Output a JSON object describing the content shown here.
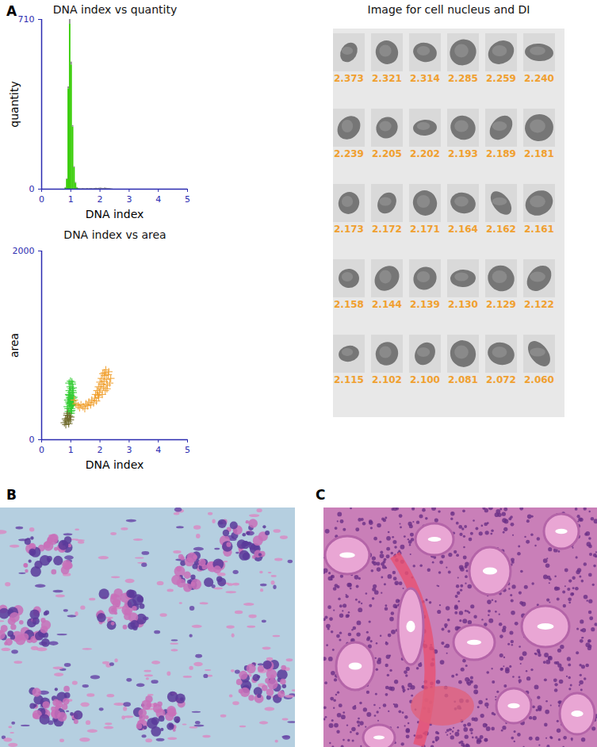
{
  "chart_data": [
    {
      "type": "histogram",
      "title": "DNA index vs quantity",
      "x_label": "DNA index",
      "y_label": "quantity",
      "bins": [
        0.75,
        0.8,
        0.85,
        0.9,
        0.95,
        1,
        1.05,
        1.1,
        1.15,
        1.2,
        1.25,
        1.3,
        1.35,
        1.4,
        1.45,
        1.5,
        1.55,
        1.6,
        1.65,
        1.7,
        1.75,
        1.8,
        1.85,
        1.9,
        1.95,
        2,
        2.05,
        2.1,
        2.15,
        2.2,
        2.25,
        2.3,
        2.35,
        2.4,
        2.45
      ],
      "series": [
        {
          "color": "#33cc00",
          "values": [
            0,
            5,
            40,
            420,
            690,
            520,
            260,
            90,
            25,
            5,
            0,
            0,
            0,
            0,
            0,
            0,
            0,
            0,
            0,
            0,
            0,
            0,
            0,
            0,
            0,
            0,
            0,
            0,
            0,
            0,
            0,
            0,
            0,
            0
          ]
        },
        {
          "color": "#8a8a8a",
          "values": [
            0,
            2,
            3,
            8,
            20,
            12,
            6,
            4,
            3,
            2,
            3,
            2,
            2,
            3,
            2,
            2,
            3,
            2,
            3,
            3,
            2,
            3,
            4,
            3,
            4,
            5,
            4,
            3,
            5,
            4,
            3,
            3,
            2,
            1
          ]
        }
      ],
      "stacked": true,
      "xlim": [
        0,
        5
      ],
      "xticks": [
        0,
        1,
        2,
        3,
        4,
        5
      ],
      "ylim": [
        0,
        710
      ],
      "yticks": [
        0,
        710
      ]
    },
    {
      "type": "scatter",
      "title": "DNA index vs area",
      "x_label": "DNA index",
      "y_label": "area",
      "series": [
        {
          "color": "#33cc33",
          "marker": "plus",
          "x": [
            0.88,
            0.9,
            0.92,
            0.93,
            0.95,
            0.95,
            0.96,
            0.97,
            0.98,
            0.98,
            0.99,
            1.0,
            1.0,
            1.01,
            1.02,
            1.02,
            1.03,
            1.04,
            1.05,
            1.05,
            1.06,
            1.07,
            1.08,
            1.09,
            1.1,
            0.91,
            0.94,
            0.96,
            0.99,
            1.0,
            1.03,
            1.06,
            0.97,
            1.01,
            1.04,
            0.93,
            1.08,
            0.95,
            1.02,
            0.98
          ],
          "values": [
            350,
            420,
            300,
            480,
            380,
            520,
            440,
            330,
            400,
            560,
            470,
            360,
            500,
            430,
            390,
            540,
            310,
            460,
            410,
            590,
            370,
            440,
            500,
            380,
            450,
            330,
            600,
            280,
            620,
            300,
            360,
            520,
            450,
            280,
            610,
            400,
            550,
            470,
            330,
            390
          ]
        },
        {
          "color": "#6e6a2a",
          "marker": "plus",
          "x": [
            0.78,
            0.82,
            0.85,
            0.87,
            0.9,
            0.92,
            0.95,
            0.98,
            0.83,
            0.88,
            0.93,
            1.0
          ],
          "values": [
            180,
            220,
            200,
            260,
            230,
            190,
            250,
            210,
            160,
            280,
            170,
            240
          ]
        },
        {
          "color": "#f0a030",
          "marker": "plus",
          "x": [
            1.12,
            1.18,
            1.25,
            1.3,
            1.35,
            1.42,
            1.48,
            1.52,
            1.58,
            1.62,
            1.68,
            1.72,
            1.78,
            1.82,
            1.85,
            1.88,
            1.9,
            1.93,
            1.95,
            1.98,
            2.0,
            2.02,
            2.05,
            2.07,
            2.1,
            2.12,
            2.14,
            2.16,
            2.18,
            2.2,
            2.22,
            2.25,
            2.28,
            2.3,
            2.33,
            2.37,
            1.96,
            2.08,
            2.15,
            2.24
          ],
          "values": [
            420,
            380,
            360,
            340,
            370,
            350,
            330,
            380,
            360,
            400,
            370,
            420,
            390,
            440,
            480,
            410,
            520,
            470,
            560,
            500,
            610,
            540,
            650,
            590,
            700,
            560,
            620,
            680,
            520,
            740,
            640,
            580,
            690,
            720,
            600,
            650,
            450,
            480,
            710,
            540
          ]
        }
      ],
      "xlim": [
        0,
        5
      ],
      "xticks": [
        0,
        1,
        2,
        3,
        4,
        5
      ],
      "ylim": [
        0,
        2000
      ],
      "yticks": [
        0,
        2000
      ]
    }
  ],
  "panel_labels": [
    "A",
    "B",
    "C"
  ],
  "nucleus_gallery": {
    "title": "Image for cell nucleus and DI",
    "labels": [
      "2.373",
      "2.321",
      "2.314",
      "2.285",
      "2.259",
      "2.240",
      "2.239",
      "2.205",
      "2.202",
      "2.193",
      "2.189",
      "2.181",
      "2.173",
      "2.172",
      "2.171",
      "2.164",
      "2.162",
      "2.161",
      "2.158",
      "2.144",
      "2.139",
      "2.130",
      "2.129",
      "2.122",
      "2.115",
      "2.102",
      "2.100",
      "2.081",
      "2.072",
      "2.060"
    ]
  }
}
